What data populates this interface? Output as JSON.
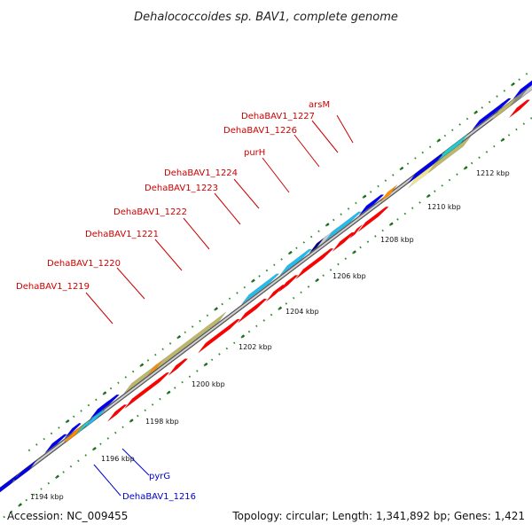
{
  "title": "Dehalococcoides sp. BAV1, complete genome",
  "footer": {
    "accession": "Accession: NC_009455",
    "summary": "Topology: circular; Length: 1,341,892 bp; Genes: 1,421"
  },
  "colors": {
    "background": "#ffffff",
    "backbone": "#888888",
    "tick_dots": "#2e8b2e",
    "label_red": "#cc0000",
    "label_blue": "#0000cc",
    "gene_red": "#ff0000",
    "gene_blue": "#0000ee",
    "gene_cyan": "#22bbee",
    "gene_teal": "#22cccc",
    "gene_olive": "#bdb76b",
    "gene_pale": "#f0e68c",
    "gene_orange": "#ff8c00",
    "gene_navy": "#000080",
    "gene_grey": "#888888",
    "gene_lightgrey": "#cccccc"
  },
  "ticks": [
    "1194 kbp",
    "1196 kbp",
    "1198 kbp",
    "1200 kbp",
    "1202 kbp",
    "1204 kbp",
    "1206 kbp",
    "1208 kbp",
    "1210 kbp",
    "1212 kbp"
  ],
  "gene_labels": [
    {
      "text": "arsM",
      "color": "red"
    },
    {
      "text": "DehaBAV1_1227",
      "color": "red"
    },
    {
      "text": "DehaBAV1_1226",
      "color": "red"
    },
    {
      "text": "purH",
      "color": "red"
    },
    {
      "text": "DehaBAV1_1224",
      "color": "red"
    },
    {
      "text": "DehaBAV1_1223",
      "color": "red"
    },
    {
      "text": "DehaBAV1_1222",
      "color": "red"
    },
    {
      "text": "DehaBAV1_1221",
      "color": "red"
    },
    {
      "text": "DehaBAV1_1220",
      "color": "red"
    },
    {
      "text": "DehaBAV1_1219",
      "color": "red"
    },
    {
      "text": "pyrG",
      "color": "blue"
    },
    {
      "text": "DehaBAV1_1216",
      "color": "blue"
    }
  ]
}
